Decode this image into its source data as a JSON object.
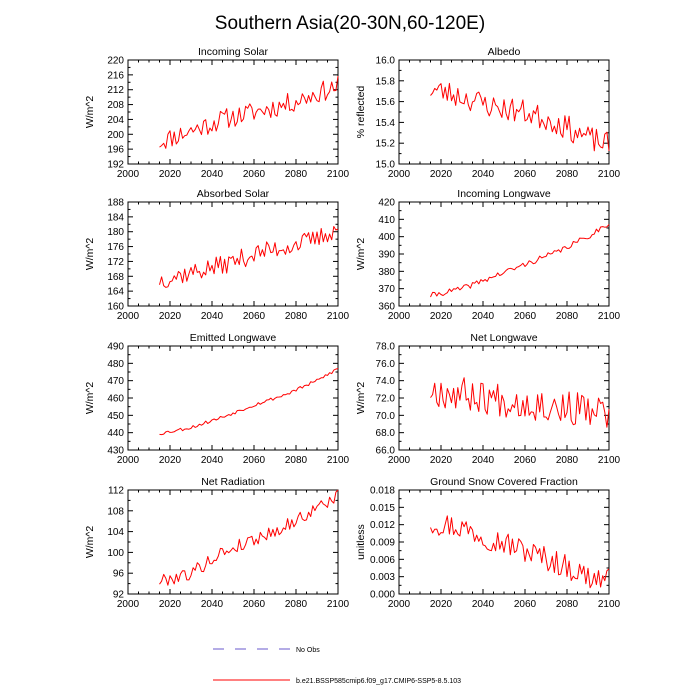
{
  "figure": {
    "title": "Southern Asia(20-30N,60-120E)",
    "legend": {
      "obs_label": "No Obs",
      "obs_color": "#6a5acd",
      "model_label": "b.e21.BSSP585cmip6.f09_g17.CMIP6-SSP5-8.5.103",
      "model_color": "#ff0000"
    }
  },
  "chart_data": [
    {
      "type": "line",
      "title": "Incoming Solar",
      "ylabel": "W/m^2",
      "xlim": [
        2000,
        2100
      ],
      "ylim": [
        192,
        220
      ],
      "xticks": [
        "2000",
        "2020",
        "2040",
        "2060",
        "2080",
        "2100"
      ],
      "yticks": [
        "192",
        "196",
        "200",
        "204",
        "208",
        "212",
        "216",
        "220"
      ],
      "x_start": 2015,
      "anchors": [
        [
          2015,
          198
        ],
        [
          2030,
          201
        ],
        [
          2045,
          204
        ],
        [
          2060,
          206
        ],
        [
          2075,
          208
        ],
        [
          2090,
          211
        ],
        [
          2100,
          213
        ]
      ],
      "amp": 2.8,
      "seed": 11,
      "series_name": "b.e21.BSSP585cmip6.f09_g17.CMIP6-SSP5-8.5.103"
    },
    {
      "type": "line",
      "title": "Albedo",
      "ylabel": "% reflected",
      "xlim": [
        2000,
        2100
      ],
      "ylim": [
        15.0,
        16.0
      ],
      "xticks": [
        "2000",
        "2020",
        "2040",
        "2060",
        "2080",
        "2100"
      ],
      "yticks": [
        "15.0",
        "15.2",
        "15.4",
        "15.6",
        "15.8",
        "16.0"
      ],
      "x_start": 2015,
      "anchors": [
        [
          2015,
          15.72
        ],
        [
          2030,
          15.65
        ],
        [
          2045,
          15.55
        ],
        [
          2060,
          15.5
        ],
        [
          2075,
          15.4
        ],
        [
          2090,
          15.25
        ],
        [
          2100,
          15.18
        ]
      ],
      "amp": 0.12,
      "seed": 23,
      "series_name": "b.e21.BSSP585cmip6.f09_g17.CMIP6-SSP5-8.5.103"
    },
    {
      "type": "line",
      "title": "Absorbed Solar",
      "ylabel": "W/m^2",
      "xlim": [
        2000,
        2100
      ],
      "ylim": [
        160,
        188
      ],
      "xticks": [
        "2000",
        "2020",
        "2040",
        "2060",
        "2080",
        "2100"
      ],
      "yticks": [
        "160",
        "164",
        "168",
        "172",
        "176",
        "180",
        "184",
        "188"
      ],
      "x_start": 2015,
      "anchors": [
        [
          2015,
          167
        ],
        [
          2030,
          169
        ],
        [
          2045,
          171
        ],
        [
          2060,
          174
        ],
        [
          2075,
          176
        ],
        [
          2090,
          178
        ],
        [
          2100,
          181
        ]
      ],
      "amp": 2.6,
      "seed": 37,
      "series_name": "b.e21.BSSP585cmip6.f09_g17.CMIP6-SSP5-8.5.103"
    },
    {
      "type": "line",
      "title": "Incoming Longwave",
      "ylabel": "W/m^2",
      "xlim": [
        2000,
        2100
      ],
      "ylim": [
        360,
        420
      ],
      "xticks": [
        "2000",
        "2020",
        "2040",
        "2060",
        "2080",
        "2100"
      ],
      "yticks": [
        "360",
        "370",
        "380",
        "390",
        "400",
        "410",
        "420"
      ],
      "x_start": 2015,
      "anchors": [
        [
          2015,
          366
        ],
        [
          2030,
          370
        ],
        [
          2045,
          377
        ],
        [
          2060,
          384
        ],
        [
          2075,
          391
        ],
        [
          2090,
          400
        ],
        [
          2100,
          408
        ]
      ],
      "amp": 1.6,
      "seed": 41,
      "series_name": "b.e21.BSSP585cmip6.f09_g17.CMIP6-SSP5-8.5.103"
    },
    {
      "type": "line",
      "title": "Emitted Longwave",
      "ylabel": "W/m^2",
      "xlim": [
        2000,
        2100
      ],
      "ylim": [
        430,
        490
      ],
      "xticks": [
        "2000",
        "2020",
        "2040",
        "2060",
        "2080",
        "2100"
      ],
      "yticks": [
        "430",
        "440",
        "450",
        "460",
        "470",
        "480",
        "490"
      ],
      "x_start": 2015,
      "anchors": [
        [
          2015,
          439.5
        ],
        [
          2030,
          443
        ],
        [
          2045,
          449
        ],
        [
          2060,
          456
        ],
        [
          2075,
          462
        ],
        [
          2090,
          470
        ],
        [
          2100,
          477
        ]
      ],
      "amp": 1.0,
      "seed": 53,
      "series_name": "b.e21.BSSP585cmip6.f09_g17.CMIP6-SSP5-8.5.103"
    },
    {
      "type": "line",
      "title": "Net Longwave",
      "ylabel": "W/m^2",
      "xlim": [
        2000,
        2100
      ],
      "ylim": [
        66.0,
        78.0
      ],
      "xticks": [
        "2000",
        "2020",
        "2040",
        "2060",
        "2080",
        "2100"
      ],
      "yticks": [
        "66.0",
        "68.0",
        "70.0",
        "72.0",
        "74.0",
        "76.0",
        "78.0"
      ],
      "x_start": 2015,
      "anchors": [
        [
          2015,
          73
        ],
        [
          2030,
          72.5
        ],
        [
          2045,
          72
        ],
        [
          2060,
          71.5
        ],
        [
          2075,
          71
        ],
        [
          2090,
          70.5
        ],
        [
          2100,
          70
        ]
      ],
      "amp": 2.0,
      "seed": 67,
      "series_name": "b.e21.BSSP585cmip6.f09_g17.CMIP6-SSP5-8.5.103"
    },
    {
      "type": "line",
      "title": "Net Radiation",
      "ylabel": "W/m^2",
      "xlim": [
        2000,
        2100
      ],
      "ylim": [
        92,
        112
      ],
      "xticks": [
        "2000",
        "2020",
        "2040",
        "2060",
        "2080",
        "2100"
      ],
      "yticks": [
        "92",
        "96",
        "100",
        "104",
        "108",
        "112"
      ],
      "x_start": 2015,
      "anchors": [
        [
          2015,
          94.5
        ],
        [
          2030,
          96
        ],
        [
          2045,
          100
        ],
        [
          2060,
          102.5
        ],
        [
          2075,
          105
        ],
        [
          2090,
          108.5
        ],
        [
          2100,
          111
        ]
      ],
      "amp": 1.3,
      "seed": 79,
      "series_name": "b.e21.BSSP585cmip6.f09_g17.CMIP6-SSP5-8.5.103"
    },
    {
      "type": "line",
      "title": "Ground Snow Covered Fraction",
      "ylabel": "unitless",
      "xlim": [
        2000,
        2100
      ],
      "ylim": [
        0.0,
        0.018
      ],
      "xticks": [
        "2000",
        "2020",
        "2040",
        "2060",
        "2080",
        "2100"
      ],
      "yticks": [
        "0.000",
        "0.003",
        "0.006",
        "0.009",
        "0.012",
        "0.015",
        "0.018"
      ],
      "x_start": 2015,
      "anchors": [
        [
          2015,
          0.0125
        ],
        [
          2030,
          0.0115
        ],
        [
          2045,
          0.0095
        ],
        [
          2060,
          0.0075
        ],
        [
          2075,
          0.0055
        ],
        [
          2090,
          0.003
        ],
        [
          2100,
          0.0025
        ]
      ],
      "amp": 0.0022,
      "seed": 97,
      "series_name": "b.e21.BSSP585cmip6.f09_g17.CMIP6-SSP5-8.5.103"
    }
  ]
}
